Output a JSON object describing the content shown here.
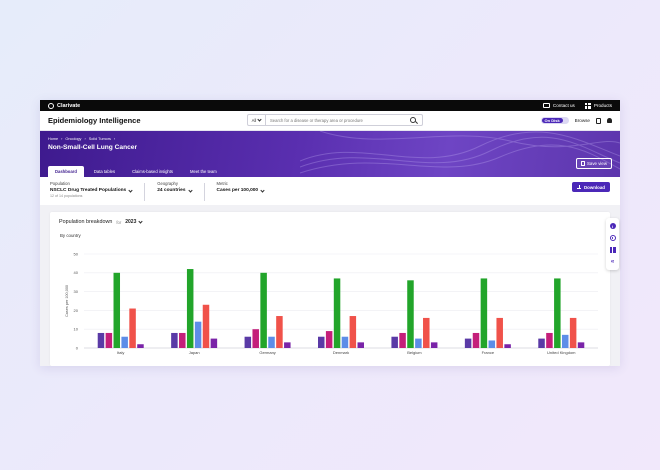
{
  "topbar": {
    "brand": "Clarivate",
    "contact_label": "Contact us",
    "products_label": "Products",
    "icons": [
      "chat-icon",
      "grid-icon"
    ]
  },
  "header": {
    "title": "Epidemiology Intelligence",
    "search": {
      "scope": "All",
      "placeholder": "Search for a disease or therapy area or procedure"
    },
    "toggle_label": "On Disk",
    "browse_label": "Browse"
  },
  "banner": {
    "breadcrumbs": [
      "Home",
      "Oncology",
      "Solid Tumors"
    ],
    "disease_title": "Non-Small-Cell Lung Cancer",
    "save_view_label": "Save view",
    "tabs": [
      {
        "label": "Dashboard",
        "active": true
      },
      {
        "label": "Data tables",
        "active": false
      },
      {
        "label": "Claims-based insights",
        "active": false
      },
      {
        "label": "Meet the team",
        "active": false
      }
    ]
  },
  "filters": {
    "population": {
      "label": "Population",
      "value": "NSCLC Drug Treated Populations",
      "sub": "12 of 14 populations"
    },
    "geography": {
      "label": "Geography",
      "value": "24 countries"
    },
    "metric": {
      "label": "Metric",
      "value": "Cases per 100,000"
    },
    "download_label": "Download"
  },
  "card": {
    "title": "Population breakdown",
    "for_label": "for",
    "year": "2023",
    "subtitle": "By country"
  },
  "colors": {
    "accent": "#4b28b8",
    "series": [
      "#5a3aa6",
      "#c41f7a",
      "#22a52a",
      "#5d8de8",
      "#f0524a",
      "#7a24a8"
    ]
  },
  "chart_data": {
    "type": "bar",
    "categories": [
      "Italy",
      "Japan",
      "Germany",
      "Denmark",
      "Belgium",
      "France",
      "United Kingdom"
    ],
    "ylabel": "Cases per 100,000",
    "ylim": [
      0,
      50
    ],
    "yticks": [
      0,
      10,
      20,
      30,
      40,
      50
    ],
    "grid": true,
    "series": [
      {
        "values": [
          8,
          8,
          6,
          6,
          6,
          5,
          5
        ]
      },
      {
        "values": [
          8,
          8,
          10,
          9,
          8,
          8,
          8
        ]
      },
      {
        "values": [
          40,
          42,
          40,
          37,
          36,
          37,
          37
        ]
      },
      {
        "values": [
          6,
          14,
          6,
          6,
          5,
          4,
          7
        ]
      },
      {
        "values": [
          21,
          23,
          17,
          17,
          16,
          16,
          16
        ]
      },
      {
        "values": [
          2,
          5,
          3,
          3,
          3,
          2,
          3
        ]
      }
    ]
  }
}
